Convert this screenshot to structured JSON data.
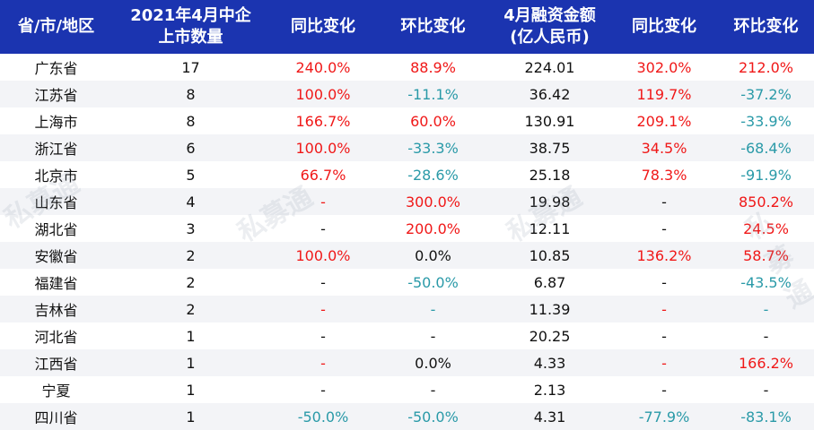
{
  "headers": [
    "省/市/地区",
    "2021年4月中企\n上市数量",
    "同比变化",
    "环比变化",
    "4月融资金额\n(亿人民币)",
    "同比变化",
    "环比变化"
  ],
  "watermark": "私募通",
  "colors": {
    "header_bg": "#1b34b0",
    "up": "#f01818",
    "down": "#2a9aa8",
    "neutral": "#111111"
  },
  "rows": [
    {
      "region": "广东省",
      "count": "17",
      "yoy": {
        "v": "240.0%",
        "c": "r"
      },
      "mom": {
        "v": "88.9%",
        "c": "r"
      },
      "amount": "224.01",
      "amt_yoy": {
        "v": "302.0%",
        "c": "r"
      },
      "amt_mom": {
        "v": "212.0%",
        "c": "r"
      }
    },
    {
      "region": "江苏省",
      "count": "8",
      "yoy": {
        "v": "100.0%",
        "c": "r"
      },
      "mom": {
        "v": "-11.1%",
        "c": "g"
      },
      "amount": "36.42",
      "amt_yoy": {
        "v": "119.7%",
        "c": "r"
      },
      "amt_mom": {
        "v": "-37.2%",
        "c": "g"
      }
    },
    {
      "region": "上海市",
      "count": "8",
      "yoy": {
        "v": "166.7%",
        "c": "r"
      },
      "mom": {
        "v": "60.0%",
        "c": "r"
      },
      "amount": "130.91",
      "amt_yoy": {
        "v": "209.1%",
        "c": "r"
      },
      "amt_mom": {
        "v": "-33.9%",
        "c": "g"
      }
    },
    {
      "region": "浙江省",
      "count": "6",
      "yoy": {
        "v": "100.0%",
        "c": "r"
      },
      "mom": {
        "v": "-33.3%",
        "c": "g"
      },
      "amount": "38.75",
      "amt_yoy": {
        "v": "34.5%",
        "c": "r"
      },
      "amt_mom": {
        "v": "-68.4%",
        "c": "g"
      }
    },
    {
      "region": "北京市",
      "count": "5",
      "yoy": {
        "v": "66.7%",
        "c": "r"
      },
      "mom": {
        "v": "-28.6%",
        "c": "g"
      },
      "amount": "25.18",
      "amt_yoy": {
        "v": "78.3%",
        "c": "r"
      },
      "amt_mom": {
        "v": "-91.9%",
        "c": "g"
      }
    },
    {
      "region": "山东省",
      "count": "4",
      "yoy": {
        "v": "-",
        "c": "r"
      },
      "mom": {
        "v": "300.0%",
        "c": "r"
      },
      "amount": "19.98",
      "amt_yoy": {
        "v": "-",
        "c": "k"
      },
      "amt_mom": {
        "v": "850.2%",
        "c": "r"
      }
    },
    {
      "region": "湖北省",
      "count": "3",
      "yoy": {
        "v": "-",
        "c": "k"
      },
      "mom": {
        "v": "200.0%",
        "c": "r"
      },
      "amount": "12.11",
      "amt_yoy": {
        "v": "-",
        "c": "k"
      },
      "amt_mom": {
        "v": "24.5%",
        "c": "r"
      }
    },
    {
      "region": "安徽省",
      "count": "2",
      "yoy": {
        "v": "100.0%",
        "c": "r"
      },
      "mom": {
        "v": "0.0%",
        "c": "k"
      },
      "amount": "10.85",
      "amt_yoy": {
        "v": "136.2%",
        "c": "r"
      },
      "amt_mom": {
        "v": "58.7%",
        "c": "r"
      }
    },
    {
      "region": "福建省",
      "count": "2",
      "yoy": {
        "v": "-",
        "c": "k"
      },
      "mom": {
        "v": "-50.0%",
        "c": "g"
      },
      "amount": "6.87",
      "amt_yoy": {
        "v": "-",
        "c": "k"
      },
      "amt_mom": {
        "v": "-43.5%",
        "c": "g"
      }
    },
    {
      "region": "吉林省",
      "count": "2",
      "yoy": {
        "v": "-",
        "c": "r"
      },
      "mom": {
        "v": "-",
        "c": "g"
      },
      "amount": "11.39",
      "amt_yoy": {
        "v": "-",
        "c": "r"
      },
      "amt_mom": {
        "v": "-",
        "c": "g"
      }
    },
    {
      "region": "河北省",
      "count": "1",
      "yoy": {
        "v": "-",
        "c": "k"
      },
      "mom": {
        "v": "-",
        "c": "k"
      },
      "amount": "20.25",
      "amt_yoy": {
        "v": "-",
        "c": "k"
      },
      "amt_mom": {
        "v": "-",
        "c": "k"
      }
    },
    {
      "region": "江西省",
      "count": "1",
      "yoy": {
        "v": "-",
        "c": "r"
      },
      "mom": {
        "v": "0.0%",
        "c": "k"
      },
      "amount": "4.33",
      "amt_yoy": {
        "v": "-",
        "c": "r"
      },
      "amt_mom": {
        "v": "166.2%",
        "c": "r"
      }
    },
    {
      "region": "宁夏",
      "count": "1",
      "yoy": {
        "v": "-",
        "c": "k"
      },
      "mom": {
        "v": "-",
        "c": "k"
      },
      "amount": "2.13",
      "amt_yoy": {
        "v": "-",
        "c": "k"
      },
      "amt_mom": {
        "v": "-",
        "c": "k"
      }
    },
    {
      "region": "四川省",
      "count": "1",
      "yoy": {
        "v": "-50.0%",
        "c": "g"
      },
      "mom": {
        "v": "-50.0%",
        "c": "g"
      },
      "amount": "4.31",
      "amt_yoy": {
        "v": "-77.9%",
        "c": "g"
      },
      "amt_mom": {
        "v": "-83.1%",
        "c": "g"
      }
    }
  ]
}
